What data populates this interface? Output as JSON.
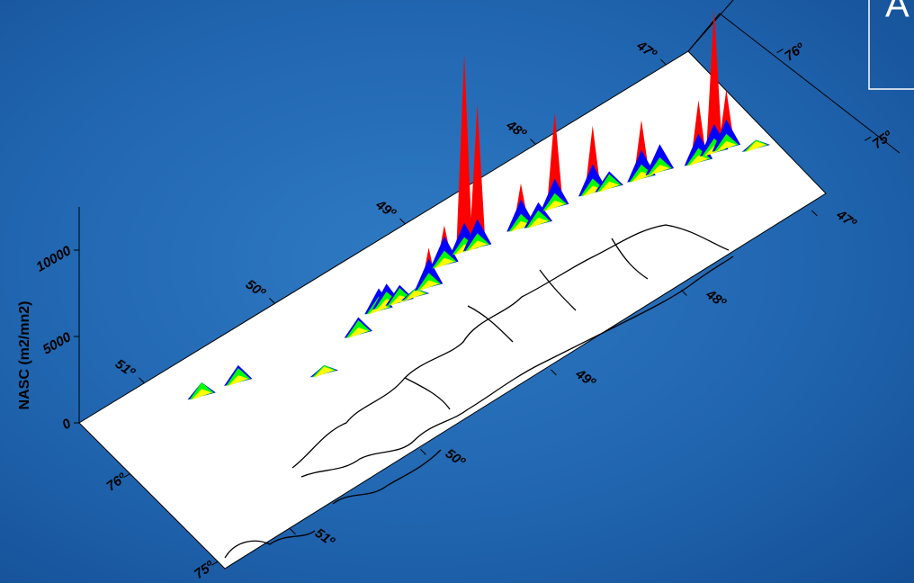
{
  "chart_data": {
    "type": "spike3d",
    "panel_label": "A",
    "zlabel": "NASC (m2/mn2)",
    "zlim": [
      0,
      12500
    ],
    "zticks": [
      0,
      5000,
      10000
    ],
    "latlim": [
      51.5,
      46.83
    ],
    "latticks": [
      {
        "value": 51,
        "label": "51º"
      },
      {
        "value": 50,
        "label": "50º"
      },
      {
        "value": 49,
        "label": "49º"
      },
      {
        "value": 48,
        "label": "48º"
      },
      {
        "value": 47,
        "label": "47º"
      }
    ],
    "lonlim": [
      76.58,
      74.92
    ],
    "lonticks": [
      {
        "value": 76,
        "label": "76º"
      },
      {
        "value": 75,
        "label": "75º"
      }
    ],
    "colors": [
      "#ffff00",
      "#00ff00",
      "#0000ff",
      "#ff0000"
    ],
    "lat": [
      50.79,
      50.55,
      50.1,
      49.75,
      49.54,
      49.48,
      49.4,
      49.3,
      49.19,
      49.01,
      48.85,
      48.77,
      48.47,
      48.37,
      48.21,
      47.96,
      47.86,
      47.66,
      47.54,
      47.31,
      47.19,
      47.11,
      46.97
    ],
    "lon": [
      76.24,
      76.18,
      75.87,
      76.0,
      76.08,
      76.08,
      76.05,
      76.02,
      76.03,
      76.12,
      76.13,
      76.1,
      76.05,
      76.0,
      76.05,
      75.99,
      75.95,
      75.88,
      75.85,
      75.75,
      75.75,
      75.73,
      75.6
    ],
    "values": [
      800,
      1000,
      500,
      1000,
      1300,
      1300,
      1000,
      500,
      2300,
      2300,
      11400,
      8300,
      2600,
      1300,
      5500,
      3900,
      1000,
      3400,
      1600,
      3600,
      8300,
      3400,
      500
    ]
  }
}
